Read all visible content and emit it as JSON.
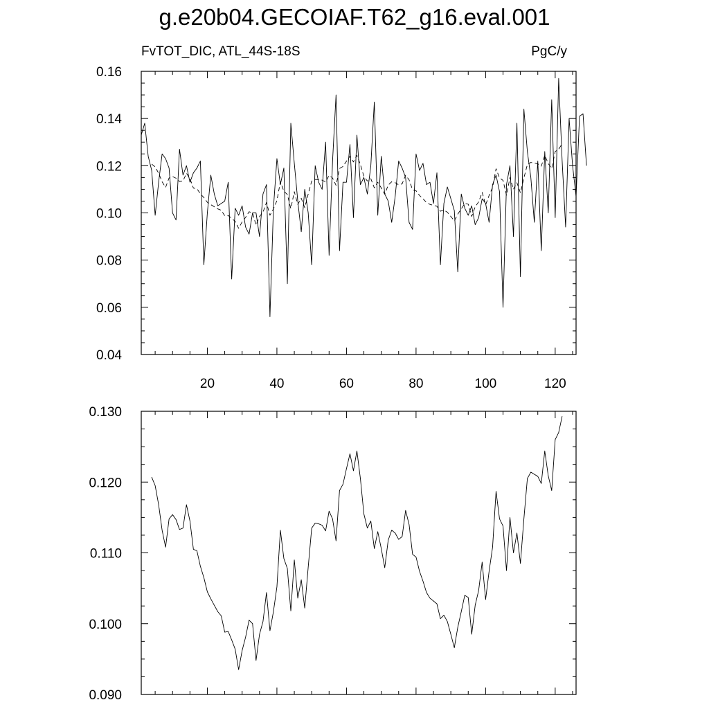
{
  "page": {
    "title": "g.e20b04.GECOIAF.T62_g16.eval.001",
    "left_label": "FvTOT_DIC, ATL_44S-18S",
    "right_label": "PgC/y"
  },
  "chart_data": [
    {
      "type": "line",
      "title": "g.e20b04.GECOIAF.T62_g16.eval.001",
      "subtitle_left": "FvTOT_DIC, ATL_44S-18S",
      "subtitle_right": "PgC/y",
      "xlim": [
        1,
        126
      ],
      "ylim": [
        0.04,
        0.16
      ],
      "x_ticks": [
        20,
        40,
        60,
        80,
        100,
        120
      ],
      "x_tick_labels": [
        "20",
        "40",
        "60",
        "80",
        "100",
        "120"
      ],
      "y_ticks": [
        0.04,
        0.06,
        0.08,
        0.1,
        0.12,
        0.14,
        0.16
      ],
      "y_tick_labels": [
        "0.04",
        "0.06",
        "0.08",
        "0.10",
        "0.12",
        "0.14",
        "0.16"
      ],
      "grid": false,
      "series": [
        {
          "style": "solid",
          "x_start": 1,
          "values": [
            0.133,
            0.138,
            0.124,
            0.118,
            0.099,
            0.113,
            0.125,
            0.123,
            0.119,
            0.1,
            0.097,
            0.127,
            0.116,
            0.12,
            0.113,
            0.117,
            0.119,
            0.122,
            0.078,
            0.1,
            0.116,
            0.108,
            0.103,
            0.104,
            0.105,
            0.113,
            0.072,
            0.102,
            0.099,
            0.103,
            0.094,
            0.091,
            0.1,
            0.1,
            0.09,
            0.108,
            0.112,
            0.056,
            0.102,
            0.123,
            0.112,
            0.119,
            0.07,
            0.138,
            0.121,
            0.105,
            0.092,
            0.11,
            0.1,
            0.078,
            0.12,
            0.113,
            0.11,
            0.13,
            0.082,
            0.122,
            0.15,
            0.084,
            0.113,
            0.113,
            0.129,
            0.098,
            0.133,
            0.112,
            0.115,
            0.108,
            0.12,
            0.147,
            0.099,
            0.124,
            0.108,
            0.105,
            0.096,
            0.107,
            0.122,
            0.119,
            0.115,
            0.096,
            0.093,
            0.125,
            0.118,
            0.121,
            0.112,
            0.113,
            0.104,
            0.117,
            0.078,
            0.104,
            0.111,
            0.106,
            0.101,
            0.075,
            0.108,
            0.102,
            0.099,
            0.103,
            0.095,
            0.098,
            0.106,
            0.104,
            0.096,
            0.112,
            0.116,
            0.109,
            0.06,
            0.112,
            0.12,
            0.09,
            0.138,
            0.073,
            0.144,
            0.126,
            0.115,
            0.096,
            0.122,
            0.084,
            0.126,
            0.1,
            0.148,
            0.098,
            0.157,
            0.122,
            0.094,
            0.14,
            0.12,
            0.107,
            0.141,
            0.142,
            0.12
          ]
        },
        {
          "style": "dashed",
          "x_start": 4,
          "values": [
            0.1207,
            0.1195,
            0.1168,
            0.1132,
            0.1108,
            0.1148,
            0.1154,
            0.1147,
            0.1133,
            0.1135,
            0.1168,
            0.1145,
            0.1105,
            0.1103,
            0.1081,
            0.1065,
            0.1045,
            0.1035,
            0.1026,
            0.1017,
            0.1011,
            0.0988,
            0.0989,
            0.0977,
            0.0964,
            0.0935,
            0.0962,
            0.0981,
            0.1005,
            0.1,
            0.0948,
            0.0985,
            0.1003,
            0.1044,
            0.099,
            0.1017,
            0.1052,
            0.1132,
            0.1092,
            0.1078,
            0.1018,
            0.109,
            0.1036,
            0.1062,
            0.1022,
            0.108,
            0.1135,
            0.1142,
            0.1141,
            0.1139,
            0.1131,
            0.1159,
            0.1148,
            0.1117,
            0.1188,
            0.1197,
            0.1219,
            0.124,
            0.1216,
            0.1244,
            0.1205,
            0.1155,
            0.1135,
            0.1145,
            0.1106,
            0.113,
            0.1106,
            0.1079,
            0.1118,
            0.1132,
            0.1128,
            0.1119,
            0.1123,
            0.116,
            0.114,
            0.1098,
            0.1094,
            0.1074,
            0.106,
            0.1044,
            0.1036,
            0.1032,
            0.1028,
            0.1007,
            0.1012,
            0.1003,
            0.0985,
            0.0966,
            0.0995,
            0.1017,
            0.104,
            0.1037,
            0.0985,
            0.1026,
            0.1047,
            0.1087,
            0.1034,
            0.1074,
            0.1108,
            0.1187,
            0.1148,
            0.1138,
            0.1075,
            0.115,
            0.11,
            0.1128,
            0.1085,
            0.1148,
            0.1205,
            0.1214,
            0.1211,
            0.1208,
            0.1198,
            0.1244,
            0.1209,
            0.1188,
            0.126,
            0.127,
            0.1293
          ]
        }
      ]
    },
    {
      "type": "line",
      "xlim": [
        1,
        126
      ],
      "ylim": [
        0.09,
        0.13
      ],
      "x_ticks": [
        20,
        40,
        60,
        80,
        100,
        120
      ],
      "x_tick_labels": [],
      "y_ticks": [
        0.09,
        0.1,
        0.11,
        0.12,
        0.13
      ],
      "y_tick_labels": [
        "0.090",
        "0.100",
        "0.110",
        "0.120",
        "0.130"
      ],
      "grid": false,
      "series": [
        {
          "style": "solid",
          "x_start": 4,
          "values_from_top_series": 1
        }
      ]
    }
  ]
}
